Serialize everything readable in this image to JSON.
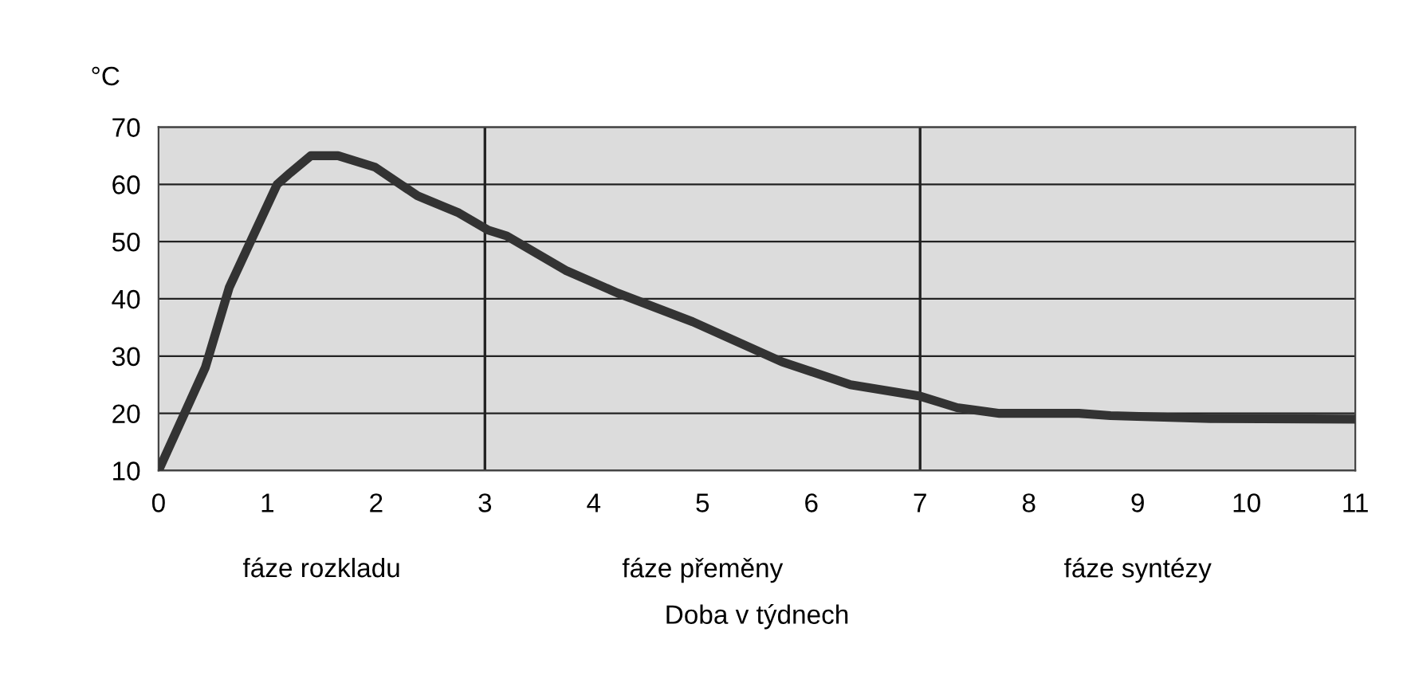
{
  "chart_data": {
    "type": "line",
    "xlabel": "Doba v týdnech",
    "ylabel": "°C",
    "xlim": [
      0,
      11
    ],
    "xticks": [
      0,
      1,
      2,
      3,
      4,
      5,
      6,
      7,
      8,
      9,
      10,
      11
    ],
    "ylim": [
      10,
      70
    ],
    "yticks": [
      10,
      20,
      30,
      40,
      50,
      60,
      70
    ],
    "grid": "y",
    "series": [
      {
        "color": "#333333",
        "x": [
          0,
          0.43,
          0.65,
          0.87,
          1.09,
          1.21,
          1.4,
          1.65,
          1.99,
          2.38,
          2.76,
          3.03,
          3.2,
          3.74,
          4.22,
          4.91,
          5.73,
          6.36,
          7.0,
          7.34,
          7.73,
          8.46,
          8.75,
          9.67,
          11
        ],
        "values": [
          10,
          28,
          42,
          51,
          60,
          62,
          65,
          65,
          63,
          58,
          55,
          52,
          51,
          45,
          41,
          36,
          29,
          25,
          23,
          21,
          20,
          20,
          19.6,
          19.1,
          19
        ]
      }
    ],
    "ref_lines": [
      {
        "axis": "x",
        "value": 3,
        "color": "#222222"
      },
      {
        "axis": "x",
        "value": 7,
        "color": "#222222"
      }
    ],
    "annotations": [
      "fáze rozkladu",
      "fáze přeměny",
      "fáze syntézy"
    ],
    "bands": [
      {
        "axis": "x",
        "from": 0,
        "to": 3,
        "color": "#dcdcdc"
      },
      {
        "axis": "x",
        "from": 3,
        "to": 7,
        "color": "#dcdcdc"
      },
      {
        "axis": "x",
        "from": 7,
        "to": 11,
        "color": "#dcdcdc"
      }
    ]
  }
}
